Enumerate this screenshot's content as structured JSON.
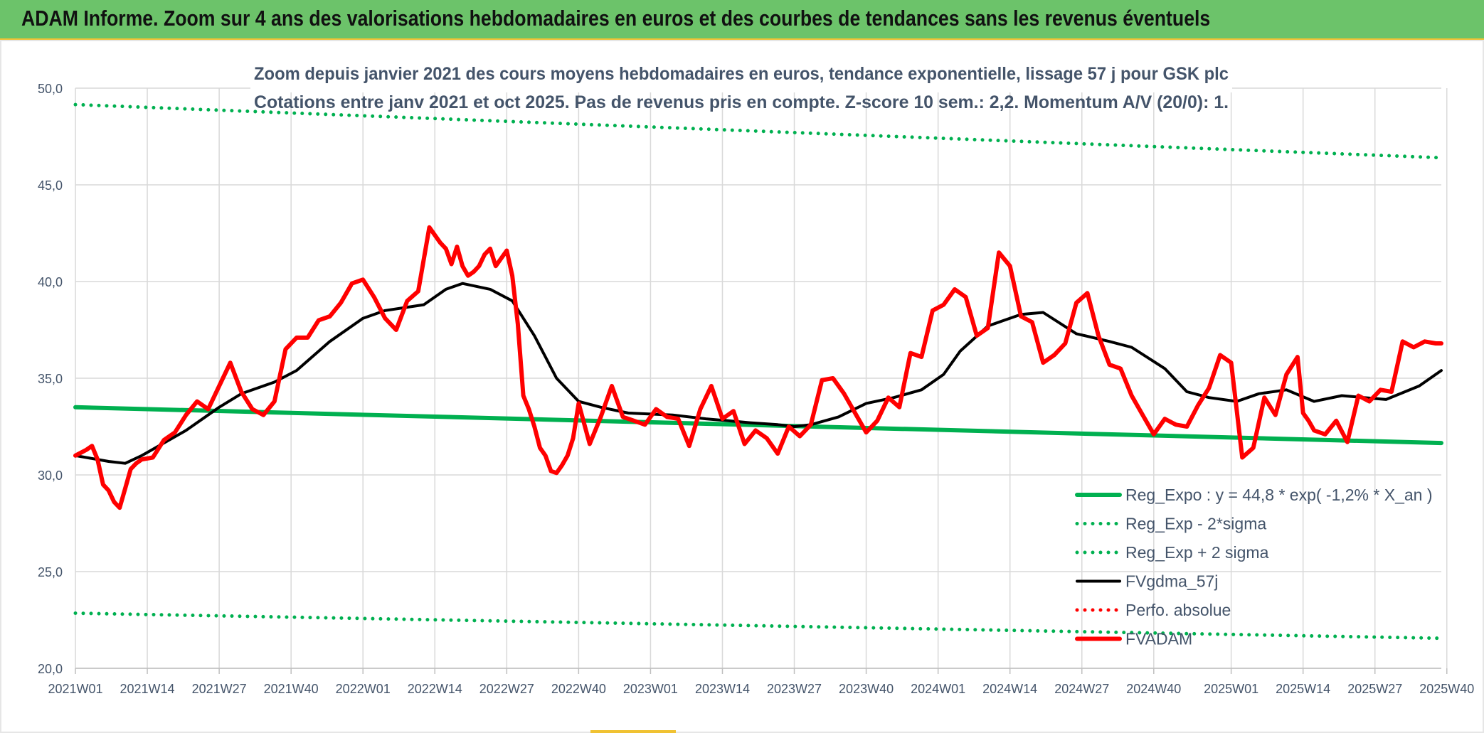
{
  "header": {
    "title": "ADAM Informe. Zoom sur 4 ans des valorisations hebdomadaires en euros et des courbes de tendances sans les revenus éventuels"
  },
  "colors": {
    "banner": "#6cc36a",
    "accent": "#f0c232",
    "reg_expo": "#00b050",
    "fvgdma": "#000000",
    "fvadam": "#ff0000",
    "perfo": "#ff0000",
    "grid": "#d9d9d9",
    "axis_text": "#44546a"
  },
  "chart_data": {
    "type": "line",
    "title": "Zoom depuis janvier 2021 des cours moyens hebdomadaires en euros, tendance exponentielle, lissage 57 j pour GSK plc",
    "subtitle": "Cotations entre janv 2021 et oct 2025. Pas de revenus pris en compte. Z-score 10 sem.: 2,2. Momentum A/V (20/0): 1.",
    "xlabel": "",
    "ylabel": "",
    "ylim": [
      20,
      50
    ],
    "yticks": [
      "20,0",
      "25,0",
      "30,0",
      "35,0",
      "40,0",
      "45,0",
      "50,0"
    ],
    "x_range": [
      0,
      247
    ],
    "xtick_labels": [
      "2021W01",
      "2021W14",
      "2021W27",
      "2021W40",
      "2022W01",
      "2022W14",
      "2022W27",
      "2022W40",
      "2023W01",
      "2023W14",
      "2023W27",
      "2023W40",
      "2024W01",
      "2024W14",
      "2024W27",
      "2024W40",
      "2025W01",
      "2025W14",
      "2025W27",
      "2025W40"
    ],
    "xtick_index": [
      0,
      13,
      26,
      39,
      52,
      65,
      78,
      91,
      104,
      117,
      130,
      143,
      156,
      169,
      182,
      195,
      209,
      222,
      235,
      248
    ],
    "legend_position": "bottom-right",
    "series": [
      {
        "name": "Reg_Expo : y = 44,8 * exp( -1,2% *  X_an )",
        "style": "solid-thick",
        "color_key": "reg_expo",
        "x": [
          0,
          247
        ],
        "values": [
          33.5,
          31.65
        ]
      },
      {
        "name": "Reg_Exp - 2*sigma",
        "style": "dotted",
        "color_key": "reg_expo",
        "x": [
          0,
          247
        ],
        "values": [
          22.85,
          21.55
        ]
      },
      {
        "name": "Reg_Exp + 2 sigma",
        "style": "dotted",
        "color_key": "reg_expo",
        "x": [
          0,
          247
        ],
        "values": [
          49.15,
          46.4
        ]
      },
      {
        "name": "FVgdma_57j",
        "style": "solid",
        "color_key": "fvgdma",
        "x": [
          0,
          6,
          9,
          12,
          20,
          26,
          30,
          36,
          40,
          46,
          52,
          56,
          63,
          67,
          70,
          75,
          79,
          83,
          87,
          91,
          95,
          100,
          108,
          114,
          118,
          122,
          127,
          130,
          133,
          138,
          143,
          148,
          153,
          157,
          160,
          165,
          168,
          171,
          175,
          181,
          187,
          191,
          197,
          201,
          205,
          210,
          214,
          219,
          224,
          229,
          233,
          237,
          243,
          247
        ],
        "values": [
          31.0,
          30.7,
          30.6,
          31.0,
          32.3,
          33.5,
          34.2,
          34.8,
          35.4,
          36.9,
          38.1,
          38.5,
          38.8,
          39.6,
          39.9,
          39.6,
          39.0,
          37.2,
          35.0,
          33.8,
          33.5,
          33.2,
          33.1,
          32.9,
          32.8,
          32.7,
          32.6,
          32.5,
          32.6,
          33.0,
          33.7,
          34.0,
          34.4,
          35.2,
          36.4,
          37.7,
          38.0,
          38.3,
          38.4,
          37.3,
          36.9,
          36.6,
          35.5,
          34.3,
          34.0,
          33.8,
          34.2,
          34.4,
          33.8,
          34.1,
          34.0,
          33.9,
          34.6,
          35.4
        ]
      },
      {
        "name": "Perfo. absolue",
        "style": "dotted",
        "color_key": "perfo",
        "x": [],
        "values": []
      },
      {
        "name": "FVADAM",
        "style": "solid-thick",
        "color_key": "fvadam",
        "x": [
          0,
          2,
          3,
          4,
          5,
          6,
          7,
          8,
          9,
          10,
          11,
          12,
          14,
          16,
          18,
          20,
          22,
          24,
          26,
          28,
          30,
          32,
          34,
          36,
          38,
          40,
          42,
          44,
          46,
          48,
          50,
          52,
          54,
          56,
          58,
          60,
          62,
          64,
          66,
          67,
          68,
          69,
          70,
          71,
          72,
          73,
          74,
          75,
          76,
          77,
          78,
          79,
          80,
          81,
          82,
          83,
          84,
          85,
          86,
          87,
          88,
          89,
          90,
          91,
          93,
          95,
          97,
          99,
          101,
          103,
          105,
          107,
          109,
          111,
          113,
          115,
          117,
          119,
          121,
          123,
          125,
          127,
          129,
          131,
          133,
          135,
          137,
          139,
          141,
          143,
          145,
          147,
          149,
          151,
          153,
          155,
          157,
          159,
          161,
          163,
          165,
          167,
          169,
          171,
          173,
          175,
          177,
          179,
          181,
          183,
          185,
          187,
          189,
          191,
          193,
          195,
          197,
          199,
          201,
          203,
          205,
          207,
          209,
          211,
          213,
          215,
          217,
          219,
          221,
          222,
          223,
          224,
          226,
          228,
          230,
          232,
          234,
          236,
          238,
          240,
          242,
          244,
          246,
          247
        ],
        "values": [
          31.0,
          31.3,
          31.5,
          30.8,
          29.5,
          29.2,
          28.6,
          28.3,
          29.3,
          30.3,
          30.6,
          30.8,
          30.9,
          31.8,
          32.2,
          33.1,
          33.8,
          33.4,
          34.6,
          35.8,
          34.3,
          33.4,
          33.1,
          33.8,
          36.5,
          37.1,
          37.1,
          38.0,
          38.2,
          38.9,
          39.9,
          40.1,
          39.2,
          38.1,
          37.5,
          39.0,
          39.5,
          42.8,
          42.0,
          41.7,
          40.9,
          41.8,
          40.8,
          40.3,
          40.5,
          40.8,
          41.4,
          41.7,
          40.8,
          41.2,
          41.6,
          40.3,
          37.8,
          34.1,
          33.4,
          32.5,
          31.4,
          31.0,
          30.2,
          30.1,
          30.5,
          31.0,
          31.9,
          33.7,
          31.6,
          33.0,
          34.6,
          33.0,
          32.8,
          32.6,
          33.4,
          33.0,
          32.9,
          31.5,
          33.4,
          34.6,
          32.9,
          33.3,
          31.6,
          32.3,
          31.9,
          31.1,
          32.5,
          32.0,
          32.6,
          34.9,
          35.0,
          34.2,
          33.2,
          32.2,
          32.8,
          34.0,
          33.5,
          36.3,
          36.1,
          38.5,
          38.8,
          39.6,
          39.2,
          37.2,
          37.6,
          41.5,
          40.8,
          38.2,
          37.9,
          35.8,
          36.2,
          36.8,
          38.9,
          39.4,
          37.2,
          35.7,
          35.5,
          34.1,
          33.1,
          32.1,
          32.9,
          32.6,
          32.5,
          33.6,
          34.5,
          36.2,
          35.8,
          30.9,
          31.4,
          34.0,
          33.1,
          35.2,
          36.1,
          33.2,
          32.8,
          32.3,
          32.1,
          32.8,
          31.7,
          34.1,
          33.8,
          34.4,
          34.3,
          36.9,
          36.6,
          36.9,
          36.8,
          36.8
        ]
      }
    ]
  }
}
